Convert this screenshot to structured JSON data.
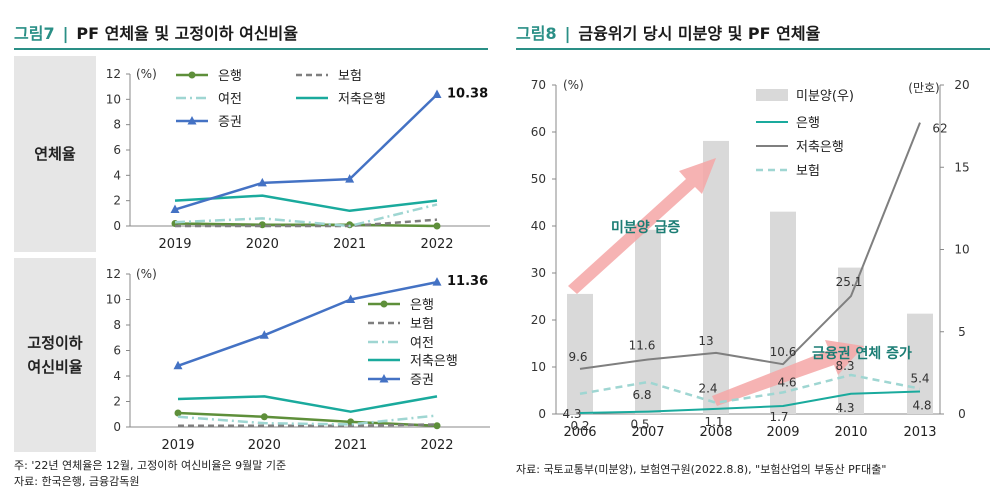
{
  "left": {
    "title_num": "그림7",
    "title_sep": "|",
    "title_text": "PF 연체율 및 고정이하 여신비율",
    "footnote_1": "주: '22년 연체율은 12월, 고정이하 여신비율은 9월말 기준",
    "footnote_2": "자료: 한국은행, 금융감독원"
  },
  "right": {
    "title_num": "그림8",
    "title_sep": "|",
    "title_text": "금융위기 당시 미분양 및 PF 연체율",
    "source": "자료: 국토교통부(미분양), 보험연구원(2022.8.8), \"보험산업의 부동산 PF대출\""
  },
  "colors": {
    "bank": "#5e8f3a",
    "insurance": "#7f7f7f",
    "card": "#9fd6d2",
    "savings": "#1aaa9d",
    "securities": "#4472c4",
    "bar": "#d9d9d9",
    "arrow": "#f4a6a6",
    "accent": "#2a8f86",
    "annot": "#1b7d74"
  },
  "chart_data": [
    {
      "type": "line",
      "panel_label": "연체율",
      "unit": "(%)",
      "categories": [
        "2019",
        "2020",
        "2021",
        "2022"
      ],
      "ylim": [
        0,
        12
      ],
      "yticks": [
        0,
        2,
        4,
        6,
        8,
        10,
        12
      ],
      "series": [
        {
          "name": "은행",
          "values": [
            0.2,
            0.1,
            0.1,
            0.0
          ]
        },
        {
          "name": "보험",
          "values": [
            0.0,
            0.0,
            0.0,
            0.5
          ]
        },
        {
          "name": "여전",
          "values": [
            0.3,
            0.6,
            0.0,
            1.7
          ]
        },
        {
          "name": "저축은행",
          "values": [
            2.0,
            2.4,
            1.2,
            2.0
          ]
        },
        {
          "name": "증권",
          "values": [
            1.3,
            3.4,
            3.7,
            10.38
          ]
        }
      ],
      "end_label": "10.38"
    },
    {
      "type": "line",
      "panel_label": "고정이하 여신비율",
      "unit": "(%)",
      "categories": [
        "2019",
        "2020",
        "2021",
        "2022"
      ],
      "ylim": [
        0,
        12
      ],
      "yticks": [
        0,
        2,
        4,
        6,
        8,
        10,
        12
      ],
      "series": [
        {
          "name": "은행",
          "values": [
            1.1,
            0.8,
            0.4,
            0.1
          ]
        },
        {
          "name": "보험",
          "values": [
            0.1,
            0.1,
            0.1,
            0.2
          ]
        },
        {
          "name": "여전",
          "values": [
            0.8,
            0.3,
            0.2,
            0.9
          ]
        },
        {
          "name": "저축은행",
          "values": [
            2.2,
            2.4,
            1.2,
            2.4
          ]
        },
        {
          "name": "증권",
          "values": [
            4.8,
            7.2,
            10.0,
            11.36
          ]
        }
      ],
      "end_label": "11.36"
    },
    {
      "type": "bar+line",
      "unit_left": "(%)",
      "unit_right": "(만호)",
      "categories": [
        "2006",
        "2007",
        "2008",
        "2009",
        "2010",
        "2013"
      ],
      "ylim_left": [
        0,
        70
      ],
      "yticks_left": [
        0,
        10,
        20,
        30,
        40,
        50,
        60,
        70
      ],
      "ylim_right": [
        0,
        20
      ],
      "yticks_right": [
        0,
        5,
        10,
        15,
        20
      ],
      "bars": {
        "name": "미분양(우)",
        "values": [
          7.3,
          11.2,
          16.6,
          12.3,
          8.9,
          6.1
        ]
      },
      "series": [
        {
          "name": "은행",
          "values": [
            0.2,
            0.5,
            1.1,
            1.7,
            4.3,
            4.8
          ],
          "labels": [
            "0.2",
            "0.5",
            "1.1",
            "1.7",
            "4.3",
            "4.8"
          ]
        },
        {
          "name": "저축은행",
          "values": [
            9.6,
            11.6,
            13,
            10.6,
            25.1,
            62
          ],
          "labels": [
            "9.6",
            "11.6",
            "13",
            "10.6",
            "25.1",
            "62"
          ]
        },
        {
          "name": "보험",
          "values": [
            4.3,
            6.8,
            2.4,
            4.6,
            8.3,
            5.4
          ],
          "labels": [
            "4.3",
            "6.8",
            "2.4",
            "4.6",
            "8.3",
            "5.4"
          ]
        }
      ],
      "annotations": [
        "미분양 급증",
        "금융권 연체 증가"
      ]
    }
  ]
}
